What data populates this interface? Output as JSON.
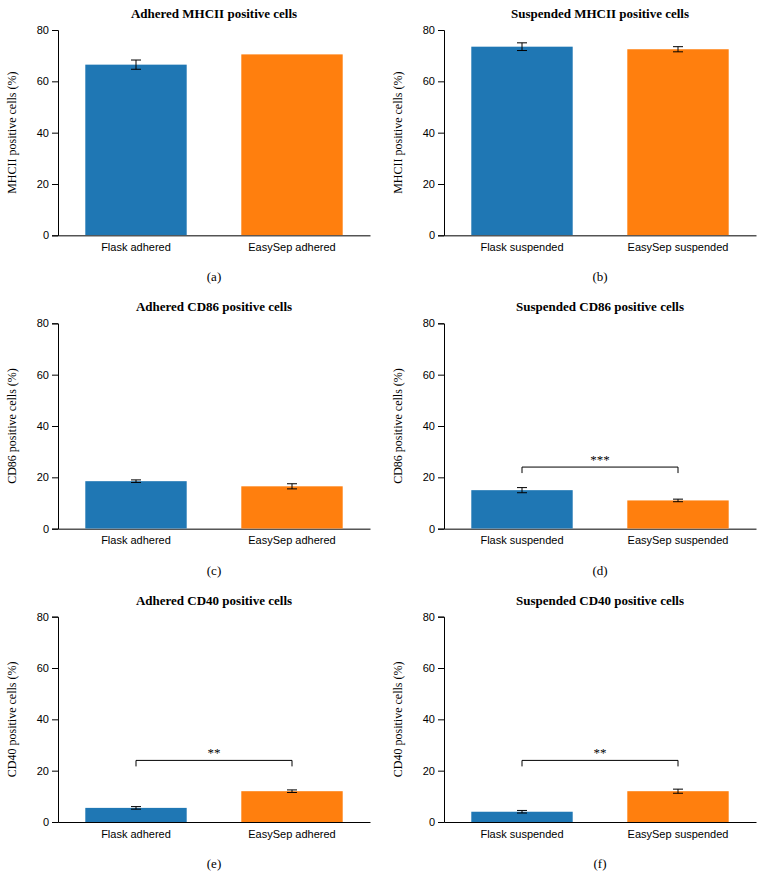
{
  "chart_data": [
    {
      "type": "bar",
      "title": "Adhered MHCII positive cells",
      "y_label": "MHCII positive cells (%)",
      "categories": [
        "Flask adhered",
        "EasySep adhered"
      ],
      "values": [
        66.5,
        70.5
      ],
      "errors": [
        1.8,
        0.0
      ],
      "ylim": [
        0,
        80
      ],
      "yticks": [
        0,
        20,
        40,
        60,
        80
      ],
      "panel_label": "(a)"
    },
    {
      "type": "bar",
      "title": "Suspended MHCII positive cells",
      "y_label": "MHCII positive cells (%)",
      "categories": [
        "Flask suspended",
        "EasySep suspended"
      ],
      "values": [
        73.5,
        72.5
      ],
      "errors": [
        1.5,
        1.0
      ],
      "ylim": [
        0,
        80
      ],
      "yticks": [
        0,
        20,
        40,
        60,
        80
      ],
      "panel_label": "(b)"
    },
    {
      "type": "bar",
      "title": "Adhered CD86 positive cells",
      "y_label": "CD86 positive cells (%)",
      "categories": [
        "Flask adhered",
        "EasySep adhered"
      ],
      "values": [
        18.5,
        16.5
      ],
      "errors": [
        0.5,
        1.0
      ],
      "ylim": [
        0,
        80
      ],
      "yticks": [
        0,
        20,
        40,
        60,
        80
      ],
      "panel_label": "(c)"
    },
    {
      "type": "bar",
      "title": "Suspended CD86 positive cells",
      "y_label": "CD86 positive cells (%)",
      "categories": [
        "Flask suspended",
        "EasySep suspended"
      ],
      "values": [
        15.0,
        11.0
      ],
      "errors": [
        1.0,
        0.5
      ],
      "ylim": [
        0,
        80
      ],
      "yticks": [
        0,
        20,
        40,
        60,
        80
      ],
      "annotations": [
        {
          "text": "***",
          "y": 24
        }
      ],
      "panel_label": "(d)"
    },
    {
      "type": "bar",
      "title": "Adhered CD40 positive cells",
      "y_label": "CD40 positive cells (%)",
      "categories": [
        "Flask adhered",
        "EasySep adhered"
      ],
      "values": [
        5.5,
        12.0
      ],
      "errors": [
        0.5,
        0.5
      ],
      "ylim": [
        0,
        80
      ],
      "yticks": [
        0,
        20,
        40,
        60,
        80
      ],
      "annotations": [
        {
          "text": "**",
          "y": 24
        }
      ],
      "panel_label": "(e)"
    },
    {
      "type": "bar",
      "title": "Suspended CD40 positive cells",
      "y_label": "CD40 positive cells (%)",
      "categories": [
        "Flask suspended",
        "EasySep suspended"
      ],
      "values": [
        4.0,
        12.0
      ],
      "errors": [
        0.5,
        0.8
      ],
      "ylim": [
        0,
        80
      ],
      "yticks": [
        0,
        20,
        40,
        60,
        80
      ],
      "annotations": [
        {
          "text": "**",
          "y": 24
        }
      ],
      "panel_label": "(f)"
    }
  ]
}
